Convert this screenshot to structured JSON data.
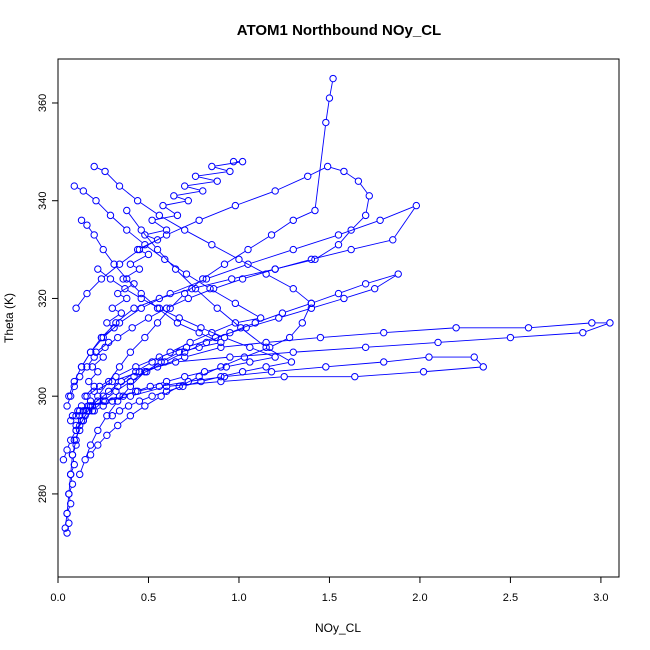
{
  "chart_data": {
    "type": "line",
    "title": "ATOM1 Northbound NOy_CL",
    "xlabel": "NOy_CL",
    "ylabel": "Theta (K)",
    "xlim": [
      0.0,
      3.1
    ],
    "ylim": [
      263,
      369
    ],
    "x_ticks": [
      0.0,
      0.5,
      1.0,
      1.5,
      2.0,
      2.5,
      3.0
    ],
    "x_tick_labels": [
      "0.0",
      "0.5",
      "1.0",
      "1.5",
      "2.0",
      "2.5",
      "3.0"
    ],
    "y_ticks": [
      280,
      300,
      320,
      340,
      360
    ],
    "y_tick_labels": [
      "280",
      "300",
      "320",
      "340",
      "360"
    ],
    "grid": false,
    "marker": "open-circle",
    "color": "#0000ff",
    "series": [
      {
        "x": [
          0.05,
          0.06,
          0.05,
          0.07,
          0.06,
          0.08,
          0.07,
          0.09,
          0.08,
          0.1,
          0.09,
          0.12,
          0.1,
          0.14,
          0.12,
          0.16,
          0.13,
          0.18,
          0.15,
          0.2,
          0.17,
          0.22,
          0.19,
          0.25,
          0.21,
          0.28,
          0.24,
          0.31,
          0.27,
          0.35,
          0.3,
          0.38,
          0.33,
          0.42,
          0.36,
          0.45,
          0.4,
          0.5,
          0.44,
          0.55,
          0.48,
          0.6,
          0.52,
          0.66,
          0.58,
          0.72,
          0.64,
          0.8,
          0.7,
          0.88,
          0.76,
          0.95,
          0.85,
          1.02,
          0.97
        ],
        "y": [
          272,
          274,
          276,
          278,
          280,
          282,
          284,
          286,
          288,
          290,
          291,
          293,
          294,
          295,
          296,
          297,
          298,
          299,
          300,
          302,
          303,
          305,
          306,
          308,
          309,
          311,
          312,
          314,
          315,
          317,
          318,
          320,
          321,
          323,
          324,
          326,
          327,
          329,
          330,
          332,
          333,
          334,
          336,
          337,
          339,
          340,
          341,
          342,
          343,
          344,
          345,
          346,
          347,
          348,
          348
        ]
      },
      {
        "x": [
          0.04,
          0.05,
          0.06,
          0.07,
          0.08,
          0.1,
          0.12,
          0.15,
          0.18,
          0.22,
          0.28,
          0.34,
          0.4,
          0.48,
          0.55,
          0.62,
          0.7,
          0.8,
          0.92,
          1.05,
          1.18,
          1.3,
          1.42,
          1.48,
          1.5,
          1.52
        ],
        "y": [
          273,
          276,
          280,
          284,
          288,
          291,
          294,
          296,
          298,
          300,
          303,
          306,
          309,
          312,
          315,
          318,
          321,
          324,
          327,
          330,
          333,
          336,
          338,
          356,
          361,
          365
        ]
      },
      {
        "x": [
          0.08,
          0.12,
          0.18,
          0.25,
          0.33,
          0.42,
          0.55,
          0.7,
          0.9,
          1.15,
          1.45,
          1.8,
          2.2,
          2.6,
          2.95,
          3.05,
          2.9,
          2.5,
          2.1,
          1.7,
          1.3,
          0.95,
          0.65,
          0.45,
          0.3,
          0.2
        ],
        "y": [
          296,
          297,
          298,
          300,
          302,
          304,
          306,
          308,
          310,
          311,
          312,
          313,
          314,
          314,
          315,
          315,
          313,
          312,
          311,
          310,
          309,
          308,
          307,
          305,
          303,
          301
        ]
      },
      {
        "x": [
          0.07,
          0.1,
          0.14,
          0.19,
          0.26,
          0.34,
          0.44,
          0.56,
          0.72,
          0.92,
          1.18,
          1.48,
          1.8,
          2.05,
          2.3,
          2.35,
          2.02,
          1.64,
          1.25,
          0.9,
          0.6,
          0.4,
          0.26,
          0.17,
          0.11
        ],
        "y": [
          295,
          296,
          297,
          298,
          299,
          300,
          301,
          302,
          303,
          304,
          305,
          306,
          307,
          308,
          308,
          306,
          305,
          304,
          304,
          303,
          302,
          300,
          299,
          298,
          297
        ]
      },
      {
        "x": [
          0.06,
          0.09,
          0.13,
          0.18,
          0.24,
          0.32,
          0.42,
          0.56,
          0.74,
          0.96,
          1.2,
          1.42,
          1.55,
          1.62,
          1.7,
          1.72,
          1.66,
          1.58,
          1.49,
          1.38,
          1.2,
          0.98,
          0.78,
          0.6,
          0.45,
          0.34,
          0.24,
          0.16,
          0.1
        ],
        "y": [
          300,
          303,
          306,
          309,
          312,
          315,
          318,
          320,
          322,
          324,
          326,
          328,
          331,
          334,
          337,
          341,
          344,
          346,
          347,
          345,
          342,
          339,
          336,
          333,
          330,
          327,
          324,
          321,
          318
        ]
      },
      {
        "x": [
          0.05,
          0.07,
          0.09,
          0.12,
          0.16,
          0.2,
          0.26,
          0.33,
          0.41,
          0.5,
          0.6,
          0.72,
          0.86,
          1.02,
          1.2,
          1.4,
          1.62,
          1.85,
          1.98,
          1.78,
          1.55,
          1.3,
          1.05,
          0.82,
          0.62,
          0.46,
          0.34,
          0.25,
          0.18,
          0.13
        ],
        "y": [
          298,
          300,
          302,
          304,
          306,
          308,
          310,
          312,
          314,
          316,
          318,
          320,
          322,
          324,
          326,
          328,
          330,
          332,
          339,
          336,
          333,
          330,
          327,
          324,
          321,
          318,
          315,
          312,
          309,
          306
        ]
      },
      {
        "x": [
          0.1,
          0.14,
          0.19,
          0.25,
          0.32,
          0.4,
          0.49,
          0.59,
          0.7,
          0.82,
          0.95,
          1.09,
          1.24,
          1.4,
          1.55,
          1.7,
          1.88,
          1.75,
          1.58,
          1.4,
          1.22,
          1.04,
          0.87,
          0.71,
          0.56,
          0.43,
          0.32,
          0.23,
          0.16
        ],
        "y": [
          293,
          295,
          297,
          299,
          301,
          303,
          305,
          307,
          309,
          311,
          313,
          315,
          317,
          319,
          321,
          323,
          325,
          322,
          320,
          318,
          316,
          314,
          312,
          310,
          308,
          306,
          304,
          302,
          300
        ]
      },
      {
        "x": [
          0.18,
          0.22,
          0.27,
          0.33,
          0.4,
          0.48,
          0.57,
          0.67,
          0.78,
          0.9,
          1.03,
          1.17,
          1.28,
          1.35,
          1.4,
          1.3,
          1.15,
          1.0,
          0.85,
          0.7,
          0.56,
          0.44,
          0.34,
          0.26,
          0.2
        ],
        "y": [
          288,
          290,
          292,
          294,
          296,
          298,
          300,
          302,
          304,
          306,
          308,
          310,
          312,
          315,
          319,
          322,
          325,
          328,
          331,
          334,
          337,
          340,
          343,
          346,
          347
        ]
      },
      {
        "x": [
          0.12,
          0.15,
          0.18,
          0.22,
          0.27,
          0.33,
          0.4,
          0.48,
          0.57,
          0.67,
          0.78,
          0.9,
          0.78,
          0.66,
          0.55,
          0.46,
          0.38,
          0.31,
          0.25,
          0.2,
          0.16,
          0.13
        ],
        "y": [
          284,
          287,
          290,
          293,
          296,
          299,
          302,
          305,
          307,
          309,
          310,
          311,
          313,
          315,
          318,
          321,
          324,
          327,
          330,
          333,
          335,
          336
        ]
      },
      {
        "x": [
          0.03,
          0.05,
          0.07,
          0.1,
          0.13,
          0.17,
          0.22,
          0.28,
          0.35,
          0.43,
          0.52,
          0.62,
          0.73,
          0.85,
          0.98,
          1.12,
          0.98,
          0.84,
          0.71,
          0.59,
          0.48,
          0.38,
          0.29,
          0.21,
          0.14,
          0.09
        ],
        "y": [
          287,
          289,
          291,
          293,
          295,
          297,
          299,
          301,
          303,
          305,
          307,
          309,
          311,
          313,
          315,
          316,
          319,
          322,
          325,
          328,
          331,
          334,
          337,
          340,
          342,
          343
        ]
      },
      {
        "x": [
          0.2,
          0.25,
          0.3,
          0.36,
          0.43,
          0.51,
          0.6,
          0.7,
          0.81,
          0.93,
          1.06,
          1.2,
          1.06,
          0.92,
          0.79,
          0.67,
          0.56,
          0.46,
          0.37,
          0.29,
          0.22
        ],
        "y": [
          297,
          298,
          299,
          300,
          301,
          302,
          303,
          304,
          305,
          306,
          307,
          308,
          310,
          312,
          314,
          316,
          318,
          320,
          322,
          324,
          326
        ]
      },
      {
        "x": [
          0.3,
          0.34,
          0.39,
          0.45,
          0.52,
          0.6,
          0.69,
          0.79,
          0.9,
          1.02,
          1.15,
          1.29,
          1.15,
          1.01,
          0.88,
          0.76,
          0.65,
          0.55,
          0.46,
          0.38
        ],
        "y": [
          296,
          297,
          298,
          299,
          300,
          301,
          302,
          303,
          304,
          305,
          306,
          307,
          310,
          314,
          318,
          322,
          326,
          330,
          334,
          338
        ]
      }
    ]
  }
}
